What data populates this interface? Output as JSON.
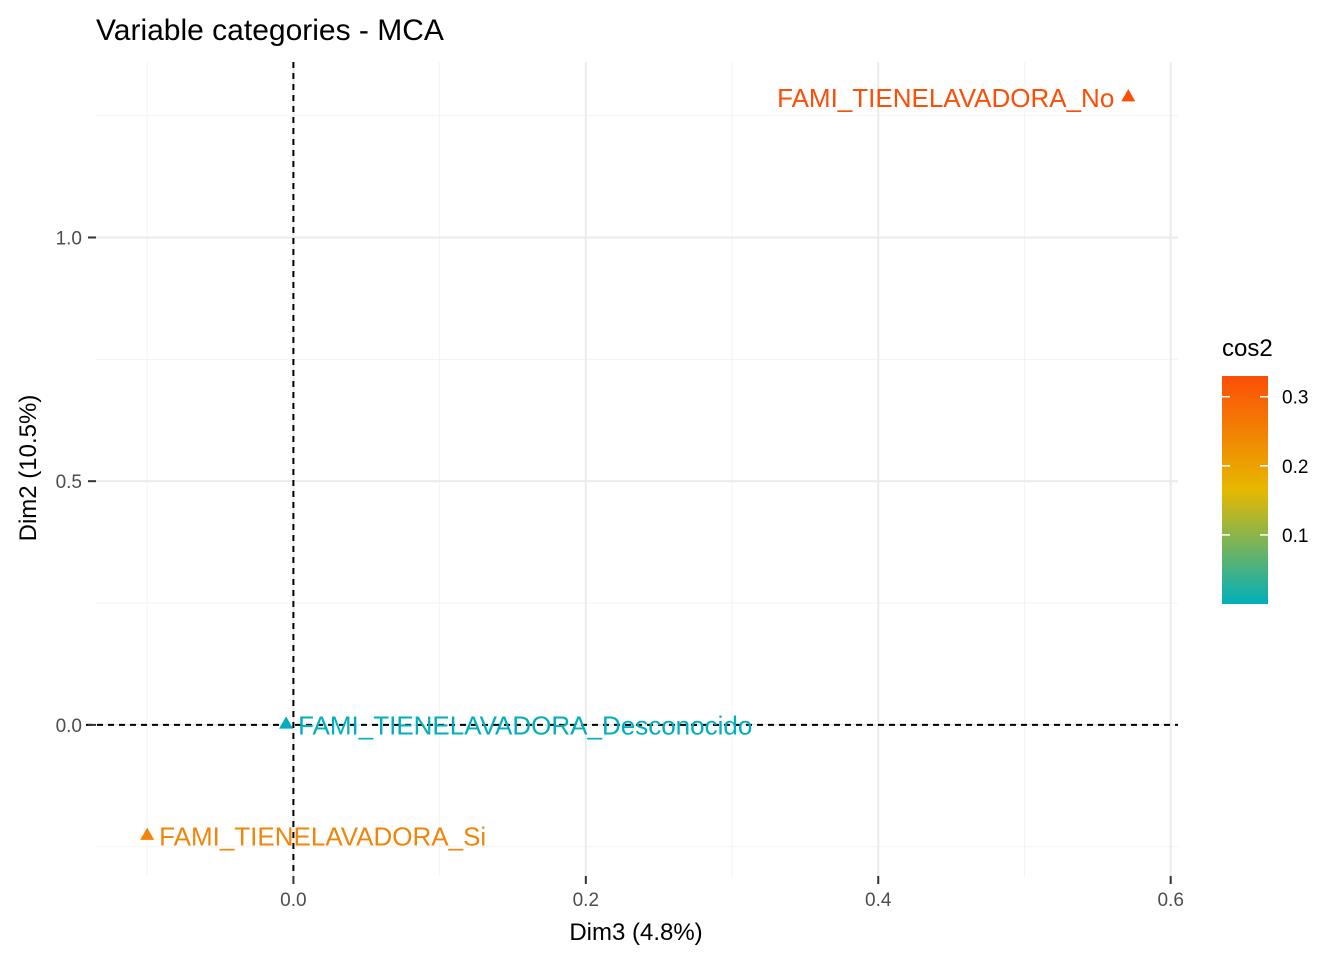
{
  "chart_data": {
    "type": "scatter",
    "title": "Variable categories - MCA",
    "xlabel": "Dim3 (4.8%)",
    "ylabel": "Dim2 (10.5%)",
    "xlim": [
      -0.135,
      0.605
    ],
    "ylim": [
      -0.31,
      1.36
    ],
    "x_ticks": [
      0.0,
      0.2,
      0.4,
      0.6
    ],
    "x_tick_labels": [
      "0.0",
      "0.2",
      "0.4",
      "0.6"
    ],
    "y_ticks": [
      0.0,
      0.5,
      1.0
    ],
    "y_tick_labels": [
      "0.0",
      "0.5",
      "1.0"
    ],
    "x_minor": [
      -0.1,
      0.1,
      0.3,
      0.5
    ],
    "y_minor": [
      -0.25,
      0.25,
      0.75,
      1.25
    ],
    "grid": true,
    "reference_lines": {
      "x": 0,
      "y": 0,
      "style": "dashed"
    },
    "points": [
      {
        "label": "FAMI_TIENELAVADORA_No",
        "x": 0.571,
        "y": 1.29,
        "cos2": 0.33,
        "color": "#FC4E07",
        "label_anchor": "end"
      },
      {
        "label": "FAMI_TIENELAVADORA_Desconocido",
        "x": -0.005,
        "y": 0.003,
        "cos2": 0.001,
        "color": "#00AFBB",
        "label_anchor": "start"
      },
      {
        "label": "FAMI_TIENELAVADORA_Si",
        "x": -0.1,
        "y": -0.225,
        "cos2": 0.24,
        "color": "#F0850A",
        "label_anchor": "start"
      }
    ],
    "legend": {
      "title": "cos2",
      "placement": "right",
      "min": 0.0,
      "max": 0.33,
      "ticks": [
        0.1,
        0.2,
        0.3
      ],
      "tick_labels": [
        "0.1",
        "0.2",
        "0.3"
      ],
      "gradient": [
        "#00AFBB",
        "#E7B800",
        "#FC4E07"
      ]
    }
  }
}
